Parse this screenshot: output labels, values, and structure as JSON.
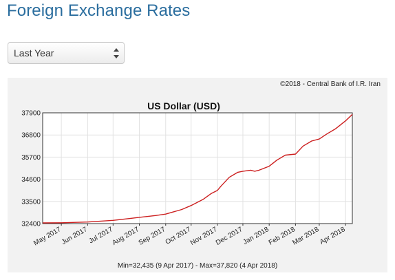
{
  "header": {
    "title": "Foreign Exchange Rates"
  },
  "period_select": {
    "selected": "Last Year"
  },
  "chart_panel": {
    "copyright": "©2018 - Central Bank of I.R. Iran",
    "minmax": "Min=32,435 (9 Apr 2017) - Max=37,820 (4 Apr 2018)"
  },
  "colors": {
    "title": "#2a6d9e",
    "series_line": "#cc1f1f",
    "panel_background": "#f2f2f2",
    "grid": "#e2e2e2"
  },
  "chart_data": {
    "type": "line",
    "title": "US Dollar (USD)",
    "xlabel": "",
    "ylabel": "",
    "ylim": [
      32400,
      37900
    ],
    "xlim": [
      "2017-04-09",
      "2018-04-09"
    ],
    "y_ticks": [
      37900,
      36800,
      35700,
      34600,
      33500,
      32400
    ],
    "x_ticks": [
      {
        "date": "2017-05-01",
        "label": "May 2017"
      },
      {
        "date": "2017-06-01",
        "label": "Jun 2017"
      },
      {
        "date": "2017-07-01",
        "label": "Jul 2017"
      },
      {
        "date": "2017-08-01",
        "label": "Aug 2017"
      },
      {
        "date": "2017-09-01",
        "label": "Sep 2017"
      },
      {
        "date": "2017-10-01",
        "label": "Oct 2017"
      },
      {
        "date": "2017-11-01",
        "label": "Nov 2017"
      },
      {
        "date": "2017-12-01",
        "label": "Dec 2017"
      },
      {
        "date": "2018-01-01",
        "label": "Jan 2018"
      },
      {
        "date": "2018-02-01",
        "label": "Feb 2018"
      },
      {
        "date": "2018-03-01",
        "label": "Mar 2018"
      },
      {
        "date": "2018-04-01",
        "label": "Apr 2018"
      }
    ],
    "grid": true,
    "series": [
      {
        "x": [
          "2017-04-09",
          "2017-05-01",
          "2017-06-01",
          "2017-06-20",
          "2017-07-01",
          "2017-07-20",
          "2017-08-01",
          "2017-08-20",
          "2017-09-01",
          "2017-09-20",
          "2017-10-01",
          "2017-10-15",
          "2017-10-25",
          "2017-11-01",
          "2017-11-05",
          "2017-11-15",
          "2017-11-25",
          "2017-12-01",
          "2017-12-10",
          "2017-12-15",
          "2017-12-20",
          "2018-01-01",
          "2018-01-10",
          "2018-01-20",
          "2018-02-01",
          "2018-02-10",
          "2018-02-20",
          "2018-03-01",
          "2018-03-10",
          "2018-03-20",
          "2018-04-01",
          "2018-04-09"
        ],
        "y": [
          32435,
          32440,
          32480,
          32530,
          32560,
          32650,
          32710,
          32800,
          32870,
          33100,
          33300,
          33600,
          33900,
          34050,
          34250,
          34700,
          34950,
          35000,
          35050,
          35000,
          35050,
          35250,
          35550,
          35800,
          35850,
          36250,
          36500,
          36600,
          36850,
          37100,
          37500,
          37820
        ]
      }
    ]
  }
}
